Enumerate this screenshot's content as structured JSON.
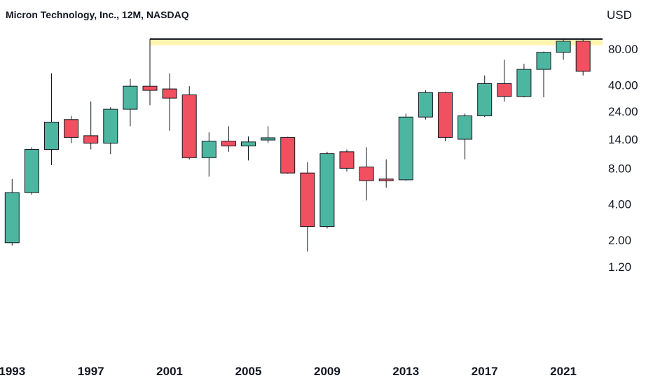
{
  "chart_data": {
    "type": "candlestick",
    "title": "Micron Technology, Inc., 12M, NASDAQ",
    "y_unit": "USD",
    "y_scale": "log",
    "ylim": [
      1.0,
      120
    ],
    "xlim": [
      1992.5,
      2023.5
    ],
    "y_ticks": [
      "80.00",
      "40.00",
      "24.00",
      "14.00",
      "8.00",
      "4.00",
      "2.00",
      "1.20"
    ],
    "x_ticks": [
      "1993",
      "1997",
      "2001",
      "2005",
      "2009",
      "2013",
      "2017",
      "2021"
    ],
    "resistance_level": 97,
    "colors": {
      "up": "#4db6a0",
      "down": "#f0505f",
      "highlight": "#fff5b0",
      "line": "#131722"
    },
    "candles": [
      {
        "year": 1993,
        "open": 1.9,
        "high": 6.5,
        "low": 1.8,
        "close": 5.0
      },
      {
        "year": 1994,
        "open": 5.0,
        "high": 12.0,
        "low": 4.8,
        "close": 11.5
      },
      {
        "year": 1995,
        "open": 11.5,
        "high": 50.0,
        "low": 8.5,
        "close": 19.5
      },
      {
        "year": 1996,
        "open": 20.5,
        "high": 22.0,
        "low": 13.0,
        "close": 14.5
      },
      {
        "year": 1997,
        "open": 15.0,
        "high": 29.0,
        "low": 11.5,
        "close": 13.0
      },
      {
        "year": 1998,
        "open": 13.0,
        "high": 26.0,
        "low": 10.5,
        "close": 25.0
      },
      {
        "year": 1999,
        "open": 25.0,
        "high": 45.0,
        "low": 18.0,
        "close": 39.0
      },
      {
        "year": 2000,
        "open": 39.0,
        "high": 97.0,
        "low": 27.0,
        "close": 36.0
      },
      {
        "year": 2001,
        "open": 37.0,
        "high": 50.0,
        "low": 16.5,
        "close": 31.0
      },
      {
        "year": 2002,
        "open": 33.0,
        "high": 39.0,
        "low": 9.5,
        "close": 9.8
      },
      {
        "year": 2003,
        "open": 9.8,
        "high": 16.0,
        "low": 6.8,
        "close": 13.5
      },
      {
        "year": 2004,
        "open": 13.5,
        "high": 18.0,
        "low": 11.0,
        "close": 12.3
      },
      {
        "year": 2005,
        "open": 12.3,
        "high": 14.8,
        "low": 9.3,
        "close": 13.3
      },
      {
        "year": 2006,
        "open": 13.8,
        "high": 18.0,
        "low": 13.0,
        "close": 14.4
      },
      {
        "year": 2007,
        "open": 14.5,
        "high": 14.7,
        "low": 7.2,
        "close": 7.3
      },
      {
        "year": 2008,
        "open": 7.3,
        "high": 9.0,
        "low": 1.6,
        "close": 2.6
      },
      {
        "year": 2009,
        "open": 2.6,
        "high": 11.0,
        "low": 2.5,
        "close": 10.6
      },
      {
        "year": 2010,
        "open": 11.0,
        "high": 11.5,
        "low": 7.5,
        "close": 8.0
      },
      {
        "year": 2011,
        "open": 8.2,
        "high": 12.0,
        "low": 4.3,
        "close": 6.3
      },
      {
        "year": 2012,
        "open": 6.5,
        "high": 9.5,
        "low": 5.5,
        "close": 6.3
      },
      {
        "year": 2013,
        "open": 6.4,
        "high": 23.0,
        "low": 6.3,
        "close": 21.5
      },
      {
        "year": 2014,
        "open": 21.5,
        "high": 36.0,
        "low": 20.5,
        "close": 34.5
      },
      {
        "year": 2015,
        "open": 34.5,
        "high": 35.0,
        "low": 13.5,
        "close": 14.5
      },
      {
        "year": 2016,
        "open": 14.0,
        "high": 23.0,
        "low": 9.5,
        "close": 22.0
      },
      {
        "year": 2017,
        "open": 22.0,
        "high": 48.0,
        "low": 21.5,
        "close": 41.0
      },
      {
        "year": 2018,
        "open": 41.0,
        "high": 65.0,
        "low": 29.0,
        "close": 32.0
      },
      {
        "year": 2019,
        "open": 32.0,
        "high": 60.0,
        "low": 31.5,
        "close": 54.0
      },
      {
        "year": 2020,
        "open": 54.0,
        "high": 76.0,
        "low": 31.5,
        "close": 75.0
      },
      {
        "year": 2021,
        "open": 75.0,
        "high": 96.0,
        "low": 65.0,
        "close": 93.0
      },
      {
        "year": 2022,
        "open": 93.0,
        "high": 98.0,
        "low": 48.0,
        "close": 52.0
      }
    ]
  }
}
